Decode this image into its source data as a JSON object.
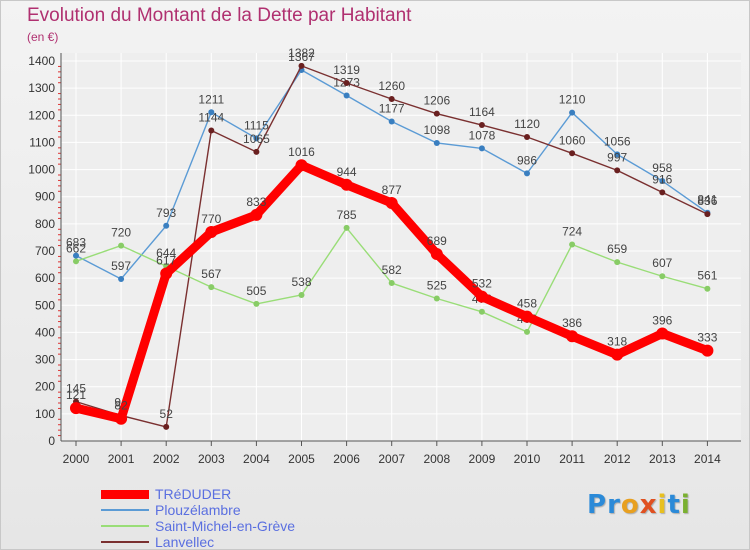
{
  "title": "Evolution du Montant de la Dette par Habitant",
  "unit": "(en €)",
  "logo": {
    "letters": [
      "P",
      "r",
      "o",
      "x",
      "i",
      "t",
      "i"
    ],
    "colors": [
      "#2b8ad8",
      "#2b8ad8",
      "#e8a020",
      "#e05020",
      "#e8c020",
      "#2b8ad8",
      "#7ab030"
    ]
  },
  "colors": {
    "background": "#eeeeee",
    "grid": "#ffffff",
    "axis": "#555555",
    "title": "#b03070"
  },
  "chart_data": {
    "type": "line",
    "x": [
      2000,
      2001,
      2002,
      2003,
      2004,
      2005,
      2006,
      2007,
      2008,
      2009,
      2010,
      2011,
      2012,
      2013,
      2014
    ],
    "ylim": [
      0,
      1400
    ],
    "yticks": [
      0,
      100,
      200,
      300,
      400,
      500,
      600,
      700,
      800,
      900,
      1000,
      1100,
      1200,
      1300,
      1400
    ],
    "grid": true,
    "legend_position": "bottom-left",
    "series": [
      {
        "name": "Plouzélambre",
        "color": "#5b9bd5",
        "marker": "#3a7fc0",
        "thick": false,
        "values": [
          683,
          597,
          793,
          1211,
          1115,
          1367,
          1273,
          1177,
          1098,
          1078,
          986,
          1210,
          1056,
          958,
          841
        ],
        "labels": [
          "683",
          "597",
          "793",
          "1211",
          "1115",
          "1367",
          "1273",
          "1177",
          "1098",
          "1078",
          "986",
          "1210",
          "1056",
          "958",
          "841"
        ]
      },
      {
        "name": "Lanvellec",
        "color": "#7a3030",
        "marker": "#6a2020",
        "thick": false,
        "values": [
          145,
          94,
          52,
          1144,
          1065,
          1382,
          1319,
          1260,
          1206,
          1164,
          1120,
          1060,
          997,
          916,
          836
        ],
        "labels": [
          "145",
          "94",
          "52",
          "1144",
          "1065",
          "1382",
          "1319",
          "1260",
          "1206",
          "1164",
          "1120",
          "1060",
          "997",
          "916",
          "836"
        ]
      },
      {
        "name": "Saint-Michel-en-Grève",
        "color": "#99dd77",
        "marker": "#88cc66",
        "thick": false,
        "values": [
          662,
          720,
          644,
          567,
          505,
          538,
          785,
          582,
          525,
          476,
          402,
          724,
          659,
          607,
          561
        ],
        "labels": [
          "662",
          "720",
          "644",
          "567",
          "505",
          "538",
          "785",
          "582",
          "525",
          "476",
          "402",
          "724",
          "659",
          "607",
          "561"
        ]
      },
      {
        "name": "TRéDUDER",
        "color": "#ff0000",
        "marker": "#ff0000",
        "thick": true,
        "values": [
          121,
          82,
          617,
          770,
          833,
          1016,
          944,
          877,
          689,
          532,
          458,
          386,
          318,
          396,
          333
        ],
        "labels": [
          "121",
          "82",
          "617",
          "770",
          "833",
          "1016",
          "944",
          "877",
          "689",
          "532",
          "458",
          "386",
          "318",
          "396",
          "333"
        ]
      }
    ],
    "legend_order": [
      "TRéDUDER",
      "Plouzélambre",
      "Saint-Michel-en-Grève",
      "Lanvellec"
    ]
  }
}
